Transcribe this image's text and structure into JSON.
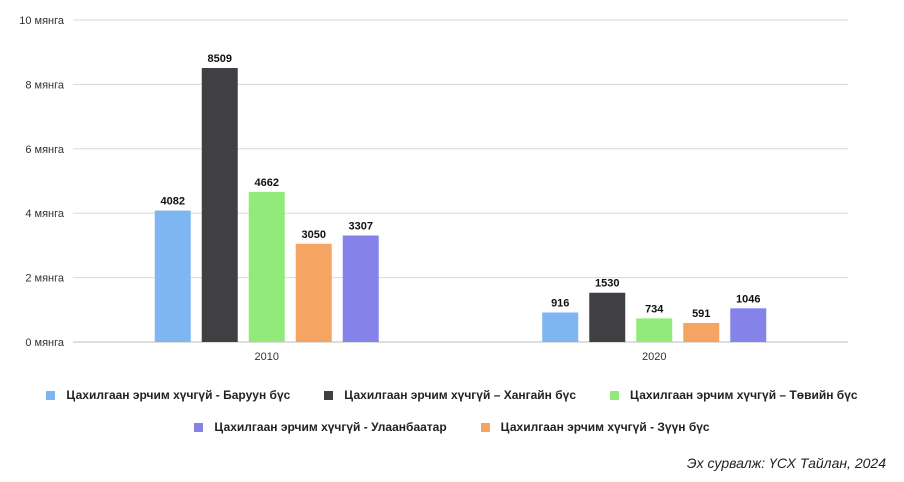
{
  "chart_data": {
    "type": "bar",
    "categories": [
      "2010",
      "2020"
    ],
    "ylim": [
      0,
      10000
    ],
    "yticks": [
      {
        "value": 0,
        "label": "0 мянга"
      },
      {
        "value": 2000,
        "label": "2 мянга"
      },
      {
        "value": 4000,
        "label": "4 мянга"
      },
      {
        "value": 6000,
        "label": "6 мянга"
      },
      {
        "value": 8000,
        "label": "8 мянга"
      },
      {
        "value": 10000,
        "label": "10 мянга"
      }
    ],
    "grid": true,
    "legend_position": "bottom",
    "series": [
      {
        "name": "Цахилгаан эрчим хүчгүй - Баруун бүс",
        "color": "#7db6f0",
        "values": [
          4082,
          916
        ]
      },
      {
        "name": "Цахилгаан эрчим хүчгүй – Хангайн бүс",
        "color": "#404044",
        "values": [
          8509,
          1530
        ]
      },
      {
        "name": "Цахилгаан эрчим хүчгүй – Төвийн бүс",
        "color": "#92ea7a",
        "values": [
          4662,
          734
        ]
      },
      {
        "name": "Цахилгаан эрчим хүчгүй - Зүүн бүс",
        "color": "#f5a561",
        "values": [
          3050,
          591
        ]
      },
      {
        "name": "Цахилгаан эрчим хүчгүй - Улаанбаатар",
        "color": "#8582ea",
        "values": [
          3307,
          1046
        ]
      }
    ]
  },
  "source_text": "Эх сурвалж: ҮСХ Тайлан, 2024"
}
